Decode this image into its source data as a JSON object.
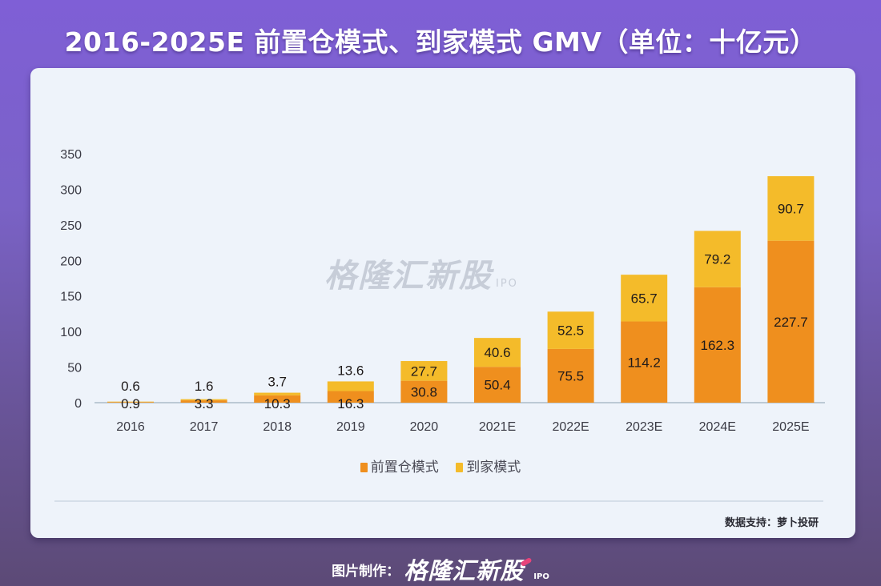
{
  "title": "2016-2025E 前置仓模式、到家模式 GMV（单位：十亿元）",
  "watermark": {
    "brand": "格隆汇新股",
    "suffix": "IPO"
  },
  "source": "数据支持：萝卜投研",
  "footer": {
    "maker_label": "图片制作：",
    "brand": "格隆汇新股",
    "suffix": "IPO"
  },
  "colors": {
    "front_warehouse": "#ef8f1e",
    "home_delivery": "#f4bb2a"
  },
  "chart_data": {
    "type": "bar",
    "stacked": true,
    "title": "2016-2025E 前置仓模式、到家模式 GMV（单位：十亿元）",
    "xlabel": "",
    "ylabel": "",
    "ylim": [
      0,
      350
    ],
    "yticks": [
      0,
      50,
      100,
      150,
      200,
      250,
      300,
      350
    ],
    "grid": false,
    "legend_position": "bottom-center",
    "categories": [
      "2016",
      "2017",
      "2018",
      "2019",
      "2020",
      "2021E",
      "2022E",
      "2023E",
      "2024E",
      "2025E"
    ],
    "series": [
      {
        "name": "前置仓模式",
        "values": [
          0.9,
          3.3,
          10.3,
          16.3,
          30.8,
          50.4,
          75.5,
          114.2,
          162.3,
          227.7
        ]
      },
      {
        "name": "到家模式",
        "values": [
          0.6,
          1.6,
          3.7,
          13.6,
          27.7,
          40.6,
          52.5,
          65.7,
          79.2,
          90.7
        ]
      }
    ]
  }
}
